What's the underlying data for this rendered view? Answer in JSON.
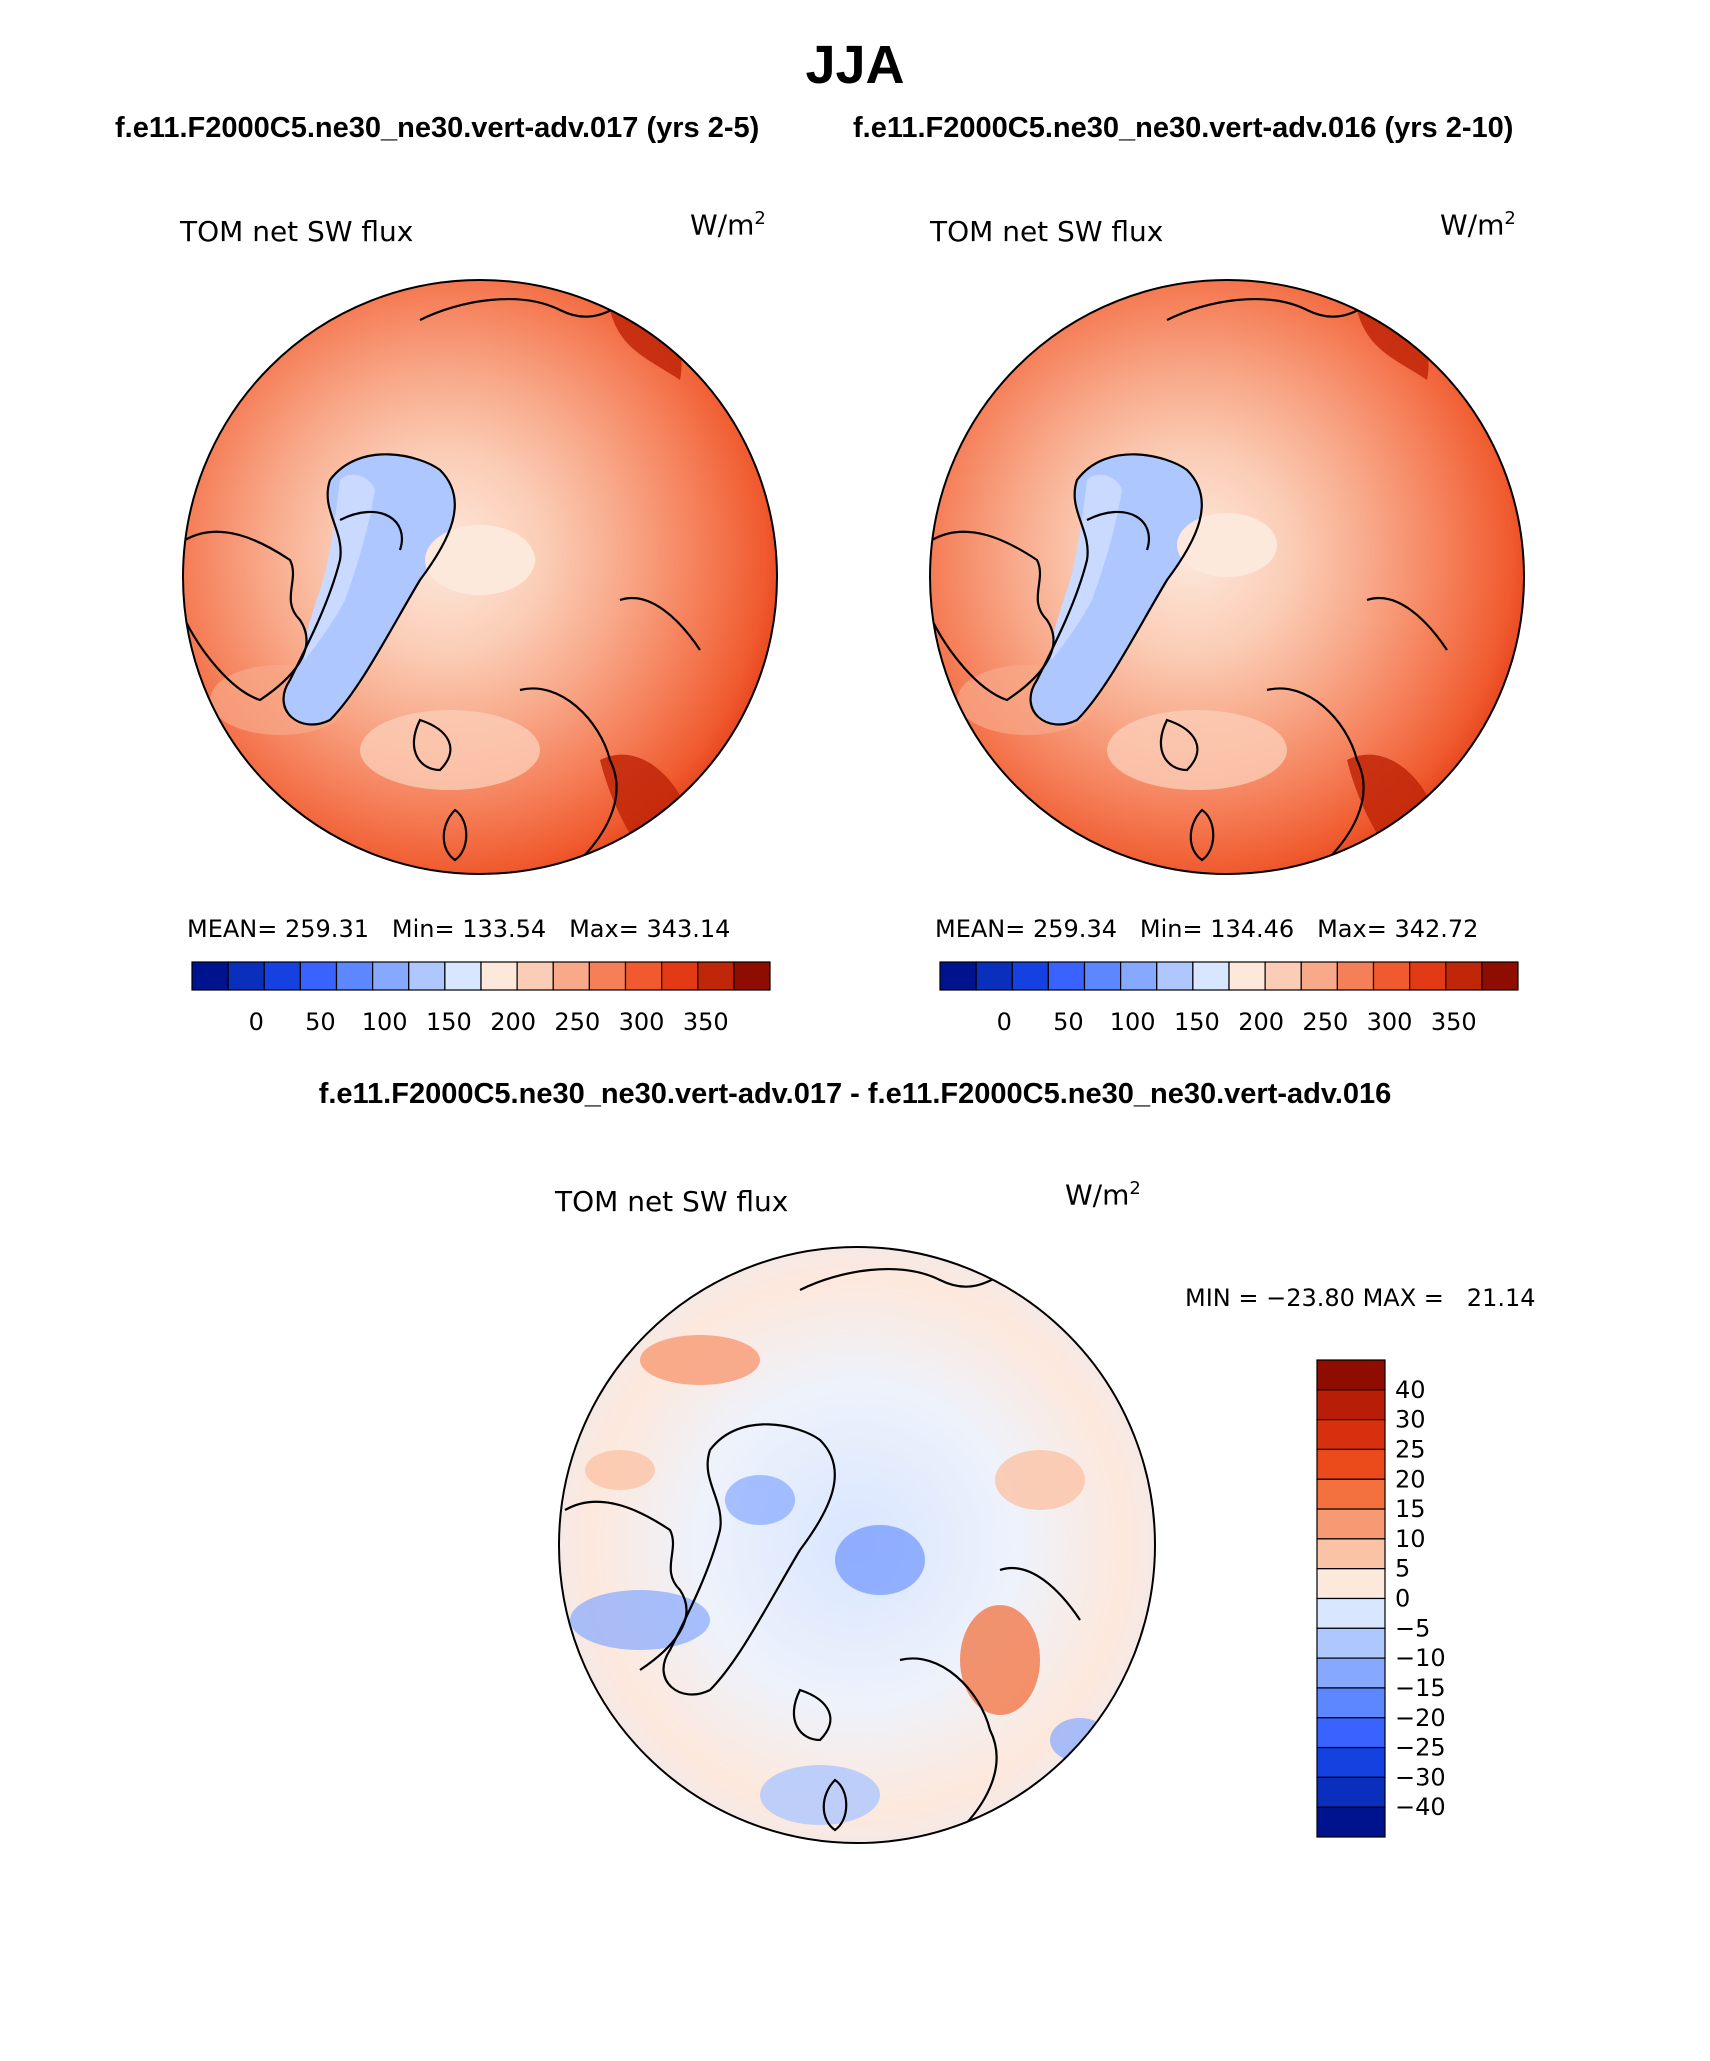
{
  "title": "JJA",
  "left_run": "f.e11.F2000C5.ne30_ne30.vert-adv.017 (yrs 2-5)",
  "right_run": "f.e11.F2000C5.ne30_ne30.vert-adv.016 (yrs 2-10)",
  "diff_title": "f.e11.F2000C5.ne30_ne30.vert-adv.017 - f.e11.F2000C5.ne30_ne30.vert-adv.016",
  "chart_data": [
    {
      "type": "heatmap",
      "projection": "north polar stereographic",
      "variable": "TOM net SW flux",
      "units_base": "W/m",
      "units_exp": "2",
      "stats": {
        "mean_label": "MEAN=",
        "mean": "259.31",
        "min_label": "Min=",
        "min": "133.54",
        "max_label": "Max=",
        "max": "343.14"
      },
      "colorbar": {
        "orientation": "horizontal",
        "levels": [
          0,
          50,
          100,
          150,
          200,
          250,
          300,
          350
        ],
        "tick_labels": [
          "0",
          "50",
          "100",
          "150",
          "200",
          "250",
          "300",
          "350"
        ],
        "colors": [
          "#00138f",
          "#0b2fbd",
          "#1441e0",
          "#3a62ff",
          "#5c87ff",
          "#86a8ff",
          "#aec7ff",
          "#d8e6ff",
          "#fde8dc",
          "#fbcdb6",
          "#f8a98a",
          "#f57f59",
          "#f05a2e",
          "#e13a14",
          "#c02608",
          "#8e0c00"
        ]
      }
    },
    {
      "type": "heatmap",
      "projection": "north polar stereographic",
      "variable": "TOM net SW flux",
      "units_base": "W/m",
      "units_exp": "2",
      "stats": {
        "mean_label": "MEAN=",
        "mean": "259.34",
        "min_label": "Min=",
        "min": "134.46",
        "max_label": "Max=",
        "max": "342.72"
      },
      "colorbar": {
        "orientation": "horizontal",
        "levels": [
          0,
          50,
          100,
          150,
          200,
          250,
          300,
          350
        ],
        "tick_labels": [
          "0",
          "50",
          "100",
          "150",
          "200",
          "250",
          "300",
          "350"
        ],
        "colors": [
          "#00138f",
          "#0b2fbd",
          "#1441e0",
          "#3a62ff",
          "#5c87ff",
          "#86a8ff",
          "#aec7ff",
          "#d8e6ff",
          "#fde8dc",
          "#fbcdb6",
          "#f8a98a",
          "#f57f59",
          "#f05a2e",
          "#e13a14",
          "#c02608",
          "#8e0c00"
        ]
      }
    },
    {
      "type": "heatmap",
      "projection": "north polar stereographic",
      "variable": "TOM net SW flux",
      "units_base": "W/m",
      "units_exp": "2",
      "stats": {
        "min_label": "MIN =",
        "min": "−23.80",
        "max_label": "MAX =",
        "max": "21.14"
      },
      "colorbar": {
        "orientation": "vertical",
        "levels": [
          40,
          30,
          25,
          20,
          15,
          10,
          5,
          0,
          -5,
          -10,
          -15,
          -20,
          -25,
          -30,
          -40
        ],
        "tick_labels": [
          "40",
          "30",
          "25",
          "20",
          "15",
          "10",
          "5",
          "0",
          "−5",
          "−10",
          "−15",
          "−20",
          "−25",
          "−30",
          "−40"
        ],
        "colors": [
          "#8e0c00",
          "#b81d08",
          "#d7300f",
          "#ea4a1c",
          "#f2713f",
          "#f79a73",
          "#fbc3a6",
          "#fde8dc",
          "#d8e6ff",
          "#aec7ff",
          "#86a8ff",
          "#5c87ff",
          "#3a62ff",
          "#1441e0",
          "#0b2fbd",
          "#00138f"
        ]
      }
    }
  ]
}
